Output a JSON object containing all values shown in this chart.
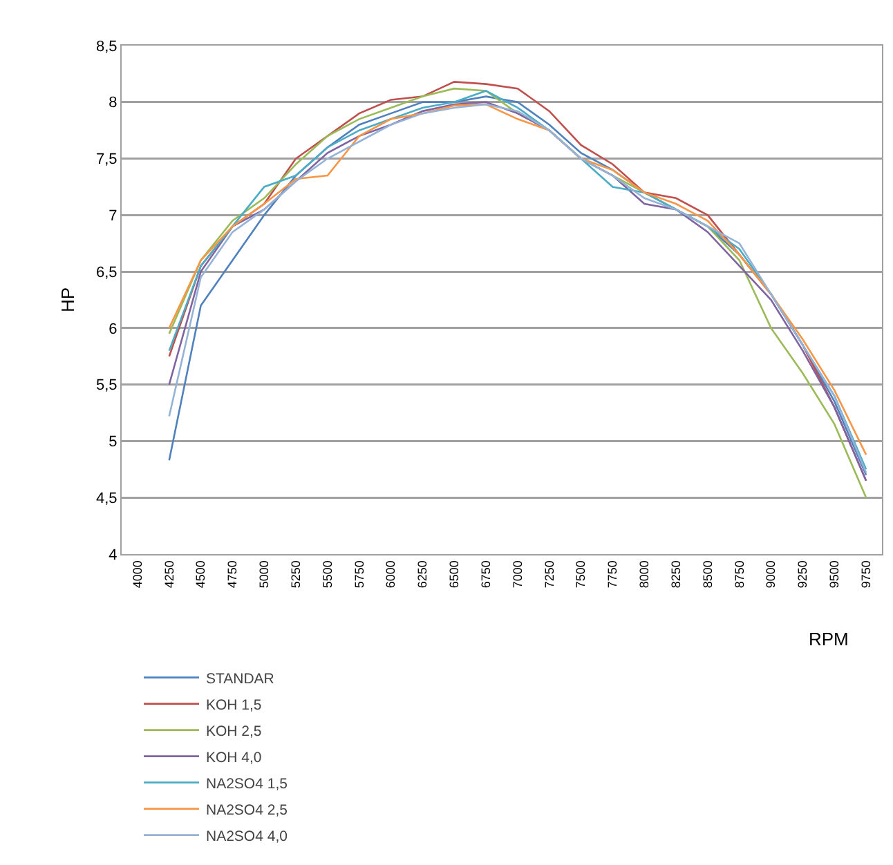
{
  "chart_data": {
    "type": "line",
    "xlabel": "RPM",
    "ylabel": "HP",
    "categories": [
      "4000",
      "4250",
      "4500",
      "4750",
      "5000",
      "5250",
      "5500",
      "5750",
      "6000",
      "6250",
      "6500",
      "6750",
      "7000",
      "7250",
      "7500",
      "7750",
      "8000",
      "8250",
      "8500",
      "8750",
      "9000",
      "9250",
      "9500",
      "9750"
    ],
    "series": [
      {
        "name": "STANDAR",
        "color": "#4f81bd",
        "values": [
          null,
          4.83,
          6.2,
          6.6,
          7.0,
          7.35,
          7.6,
          7.8,
          7.9,
          8.0,
          8.0,
          8.05,
          8.0,
          7.8,
          7.55,
          7.4,
          7.2,
          7.05,
          6.9,
          6.65,
          6.3,
          5.85,
          5.35,
          4.7
        ]
      },
      {
        "name": "KOH 1,5",
        "color": "#c0504d",
        "values": [
          null,
          5.75,
          6.55,
          6.9,
          7.1,
          7.5,
          7.7,
          7.9,
          8.02,
          8.05,
          8.18,
          8.16,
          8.12,
          7.92,
          7.62,
          7.45,
          7.2,
          7.15,
          7.0,
          6.65,
          6.3,
          5.85,
          5.3,
          4.65
        ]
      },
      {
        "name": "KOH 2,5",
        "color": "#9bbb59",
        "values": [
          null,
          5.95,
          6.6,
          6.95,
          7.15,
          7.45,
          7.7,
          7.85,
          7.95,
          8.05,
          8.12,
          8.1,
          7.9,
          7.75,
          7.5,
          7.35,
          7.2,
          7.05,
          6.9,
          6.6,
          6.0,
          5.6,
          5.15,
          4.5
        ]
      },
      {
        "name": "KOH 4,0",
        "color": "#8064a2",
        "values": [
          null,
          5.5,
          6.5,
          6.9,
          7.05,
          7.3,
          7.55,
          7.7,
          7.8,
          7.92,
          7.98,
          8.0,
          7.9,
          7.75,
          7.5,
          7.35,
          7.1,
          7.05,
          6.85,
          6.55,
          6.25,
          5.8,
          5.3,
          4.65
        ]
      },
      {
        "name": "NA2SO4 1,5",
        "color": "#4bacc6",
        "values": [
          null,
          5.8,
          6.55,
          6.9,
          7.25,
          7.35,
          7.6,
          7.75,
          7.85,
          7.95,
          8.0,
          8.1,
          7.95,
          7.75,
          7.5,
          7.25,
          7.2,
          7.05,
          6.9,
          6.7,
          6.3,
          5.85,
          5.4,
          4.75
        ]
      },
      {
        "name": "NA2SO4 2,5",
        "color": "#f79646",
        "values": [
          null,
          6.0,
          6.6,
          6.9,
          7.1,
          7.32,
          7.35,
          7.7,
          7.85,
          7.9,
          7.97,
          7.98,
          7.85,
          7.75,
          7.5,
          7.4,
          7.2,
          7.1,
          6.95,
          6.65,
          6.3,
          5.9,
          5.45,
          4.88
        ]
      },
      {
        "name": "NA2SO4 4,0",
        "color": "#95b3d7",
        "values": [
          null,
          5.22,
          6.45,
          6.85,
          7.05,
          7.3,
          7.5,
          7.65,
          7.8,
          7.9,
          7.95,
          7.98,
          7.92,
          7.75,
          7.5,
          7.35,
          7.15,
          7.05,
          6.9,
          6.75,
          6.3,
          5.85,
          5.4,
          4.72
        ]
      }
    ],
    "ylim": [
      4,
      8.5
    ],
    "yticks": [
      4,
      {
        "value": 4.5,
        "label": "4,5"
      },
      5,
      {
        "value": 5.5,
        "label": "5,5"
      },
      6,
      {
        "value": 6.5,
        "label": "6,5"
      },
      7,
      {
        "value": 7.5,
        "label": "7,5"
      },
      8,
      {
        "value": 8.5,
        "label": "8,5"
      }
    ],
    "grid": "y",
    "legend": "bottom left",
    "marker": "none",
    "line_style": "solid"
  }
}
